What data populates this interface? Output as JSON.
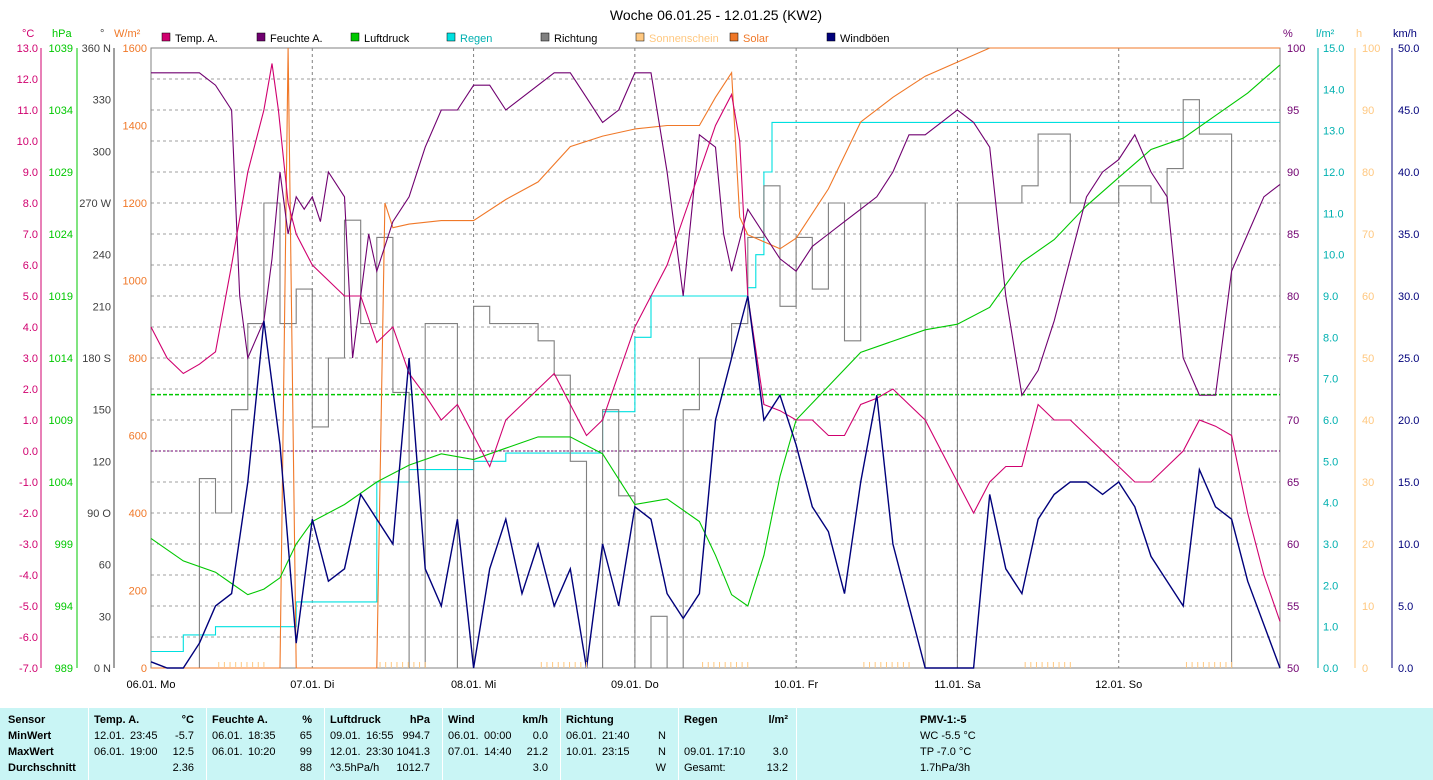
{
  "title": "Woche 06.01.25 - 12.01.25 (KW2)",
  "colors": {
    "temp": "#d0006f",
    "hum": "#700070",
    "press": "#00c800",
    "rain": "#00e0e0",
    "dir": "#808080",
    "sun": "#ffc880",
    "solar": "#f07828",
    "gust": "#00007b",
    "grid": "#808080",
    "bottom_bg": "#c9f5f5"
  },
  "units": {
    "temp": "°C",
    "press": "hPa",
    "dir": "°",
    "solar": "W/m²",
    "hum": "%",
    "rain": "l/m²",
    "sun": "h",
    "wind": "km/h"
  },
  "axes": {
    "temp": [
      "13.0",
      "12.0",
      "11.0",
      "10.0",
      "9.0",
      "8.0",
      "7.0",
      "6.0",
      "5.0",
      "4.0",
      "3.0",
      "2.0",
      "1.0",
      "0.0",
      "-1.0",
      "-2.0",
      "-3.0",
      "-4.0",
      "-5.0",
      "-6.0",
      "-7.0"
    ],
    "press": [
      "1039",
      "1034",
      "1029",
      "1024",
      "1019",
      "1014",
      "1009",
      "1004",
      "999",
      "994",
      "989"
    ],
    "dir": [
      "360 N",
      "330",
      "300",
      "270 W",
      "240",
      "210",
      "180 S",
      "150",
      "120",
      "90 O",
      "60",
      "30",
      "0 N"
    ],
    "solar": [
      "1600",
      "1400",
      "1200",
      "1000",
      "800",
      "600",
      "400",
      "200",
      "0"
    ],
    "hum": [
      "100",
      "95",
      "90",
      "85",
      "80",
      "75",
      "70",
      "65",
      "60",
      "55",
      "50"
    ],
    "rain": [
      "15.0",
      "14.0",
      "13.0",
      "12.0",
      "11.0",
      "10.0",
      "9.0",
      "8.0",
      "7.0",
      "6.0",
      "5.0",
      "4.0",
      "3.0",
      "2.0",
      "1.0",
      "0.0"
    ],
    "sun": [
      "100",
      "90",
      "80",
      "70",
      "60",
      "50",
      "40",
      "30",
      "20",
      "10",
      "0"
    ],
    "wind": [
      "50.0",
      "45.0",
      "40.0",
      "35.0",
      "30.0",
      "25.0",
      "20.0",
      "15.0",
      "10.0",
      "5.0",
      "0.0"
    ],
    "days": [
      "06.01. Mo",
      "07.01. Di",
      "08.01. Mi",
      "09.01. Do",
      "10.01. Fr",
      "11.01. Sa",
      "12.01. So"
    ]
  },
  "legend": [
    "Temp. A.",
    "Feuchte A.",
    "Luftdruck",
    "Regen",
    "Richtung",
    "Sonnenschein",
    "Solar",
    "Windböen"
  ],
  "chart_data": {
    "type": "line",
    "title": "Woche 06.01.25 - 12.01.25 (KW2)",
    "x_unit": "days since 06.01. 00:00",
    "xlim": [
      0,
      7
    ],
    "series": [
      {
        "name": "Temp. A.",
        "unit": "°C",
        "ylim": [
          -7,
          13
        ],
        "x": [
          0,
          0.1,
          0.2,
          0.3,
          0.4,
          0.5,
          0.6,
          0.7,
          0.75,
          0.79,
          0.85,
          0.9,
          0.95,
          1.0,
          1.1,
          1.2,
          1.3,
          1.4,
          1.5,
          1.6,
          1.7,
          1.8,
          1.9,
          2.0,
          2.1,
          2.2,
          2.3,
          2.4,
          2.5,
          2.6,
          2.7,
          2.8,
          2.9,
          3.0,
          3.1,
          3.2,
          3.3,
          3.4,
          3.5,
          3.6,
          3.65,
          3.7,
          3.8,
          3.9,
          4.0,
          4.1,
          4.2,
          4.3,
          4.4,
          4.5,
          4.6,
          4.7,
          4.8,
          4.9,
          5.0,
          5.1,
          5.2,
          5.3,
          5.4,
          5.5,
          5.6,
          5.7,
          5.8,
          5.9,
          6.0,
          6.1,
          6.2,
          6.3,
          6.4,
          6.5,
          6.6,
          6.7,
          6.8,
          6.9,
          7.0
        ],
        "y": [
          4.0,
          3.0,
          2.5,
          2.8,
          3.2,
          6.0,
          9.0,
          11.0,
          12.5,
          11.0,
          8.0,
          7.0,
          6.5,
          6.0,
          5.5,
          5.0,
          5.0,
          3.5,
          4.0,
          2.5,
          1.8,
          1.0,
          1.5,
          0.5,
          -0.5,
          1.0,
          1.5,
          2.0,
          2.5,
          1.5,
          0.5,
          1.0,
          2.5,
          4.0,
          5.0,
          6.0,
          7.5,
          9.0,
          10.5,
          11.5,
          10.0,
          5.0,
          1.5,
          1.3,
          1.0,
          1.0,
          0.5,
          0.5,
          1.5,
          1.7,
          2.0,
          1.5,
          1.0,
          0.0,
          -1.0,
          -2.0,
          -1.0,
          -0.5,
          -0.5,
          1.5,
          1.0,
          1.0,
          0.5,
          0.0,
          -0.5,
          -1.0,
          -1.0,
          -0.5,
          0.0,
          1.0,
          0.8,
          0.5,
          -2.0,
          -4.0,
          -5.5
        ]
      },
      {
        "name": "Feuchte A.",
        "unit": "%",
        "ylim": [
          50,
          100
        ],
        "x": [
          0,
          0.1,
          0.2,
          0.3,
          0.4,
          0.5,
          0.55,
          0.6,
          0.7,
          0.75,
          0.8,
          0.85,
          0.9,
          0.95,
          1.0,
          1.05,
          1.1,
          1.2,
          1.25,
          1.3,
          1.35,
          1.4,
          1.5,
          1.6,
          1.7,
          1.8,
          1.9,
          2.0,
          2.1,
          2.2,
          2.3,
          2.4,
          2.5,
          2.6,
          2.7,
          2.8,
          2.9,
          3.0,
          3.1,
          3.2,
          3.3,
          3.4,
          3.5,
          3.55,
          3.6,
          3.7,
          3.8,
          3.9,
          4.0,
          4.1,
          4.2,
          4.3,
          4.4,
          4.5,
          4.6,
          4.7,
          4.8,
          4.9,
          5.0,
          5.1,
          5.2,
          5.3,
          5.4,
          5.5,
          5.6,
          5.7,
          5.8,
          5.9,
          6.0,
          6.1,
          6.2,
          6.3,
          6.4,
          6.5,
          6.6,
          6.7,
          6.8,
          6.9,
          7.0
        ],
        "y": [
          98,
          98,
          98,
          98,
          97,
          95,
          80,
          75,
          78,
          83,
          90,
          85,
          88,
          87,
          88,
          86,
          90,
          88,
          75,
          80,
          85,
          82,
          86,
          88,
          92,
          95,
          95,
          97,
          97,
          95,
          96,
          97,
          98,
          98,
          96,
          94,
          95,
          98,
          98,
          90,
          80,
          93,
          92,
          85,
          82,
          87,
          85,
          83,
          82,
          84,
          85,
          86,
          87,
          88,
          90,
          93,
          93,
          94,
          95,
          94,
          92,
          80,
          72,
          74,
          78,
          83,
          88,
          90,
          91,
          93,
          90,
          88,
          75,
          72,
          72,
          82,
          85,
          88,
          89
        ]
      },
      {
        "name": "Luftdruck",
        "unit": "hPa",
        "ylim": [
          989,
          1044
        ],
        "x": [
          0,
          0.2,
          0.4,
          0.5,
          0.6,
          0.7,
          0.8,
          0.9,
          1.0,
          1.2,
          1.4,
          1.6,
          1.8,
          2.0,
          2.2,
          2.4,
          2.6,
          2.8,
          3.0,
          3.2,
          3.4,
          3.5,
          3.6,
          3.7,
          3.8,
          3.9,
          4.0,
          4.2,
          4.4,
          4.6,
          4.8,
          5.0,
          5.2,
          5.4,
          5.6,
          5.8,
          6.0,
          6.2,
          6.4,
          6.6,
          6.8,
          7.0
        ],
        "y": [
          1000.5,
          998.5,
          997.5,
          996.5,
          995.5,
          996,
          997,
          1000,
          1002,
          1003.5,
          1005.5,
          1007,
          1008,
          1007.5,
          1008.5,
          1009.5,
          1009.5,
          1008,
          1003.5,
          1004,
          1002,
          999,
          995.5,
          994.5,
          999,
          1006,
          1011,
          1014,
          1017,
          1018,
          1019,
          1019.5,
          1021,
          1025,
          1027,
          1030,
          1032.5,
          1035,
          1036,
          1038,
          1040,
          1042.5
        ]
      },
      {
        "name": "Regen",
        "unit": "l/m²",
        "ylim": [
          0,
          15
        ],
        "x": [
          0,
          0.2,
          0.4,
          0.6,
          0.8,
          0.9,
          1.0,
          1.2,
          1.35,
          1.4,
          1.6,
          1.8,
          2.0,
          2.2,
          2.4,
          2.6,
          2.8,
          3.0,
          3.1,
          3.2,
          3.4,
          3.6,
          3.7,
          3.75,
          3.8,
          3.85,
          3.9,
          4.0,
          4.5,
          5.0,
          5.5,
          6.0,
          6.5,
          7.0
        ],
        "y": [
          0.4,
          0.8,
          1.0,
          1.0,
          1.0,
          1.6,
          1.6,
          1.6,
          1.6,
          4.5,
          4.8,
          4.8,
          5.0,
          5.2,
          5.2,
          5.2,
          6.2,
          8.0,
          9.0,
          9.0,
          9.0,
          9.0,
          9.2,
          10.0,
          12.0,
          13.2,
          13.2,
          13.2,
          13.2,
          13.2,
          13.2,
          13.2,
          13.2,
          13.2
        ]
      },
      {
        "name": "Richtung",
        "unit": "°",
        "ylim": [
          0,
          360
        ],
        "x": [
          0,
          0.3,
          0.4,
          0.5,
          0.6,
          0.7,
          0.8,
          0.9,
          1.0,
          1.1,
          1.2,
          1.3,
          1.4,
          1.5,
          1.6,
          1.7,
          1.8,
          1.9,
          2.0,
          2.1,
          2.2,
          2.3,
          2.4,
          2.5,
          2.6,
          2.7,
          2.8,
          2.9,
          3.0,
          3.1,
          3.2,
          3.3,
          3.4,
          3.5,
          3.6,
          3.7,
          3.8,
          3.9,
          4.0,
          4.1,
          4.2,
          4.3,
          4.4,
          4.5,
          4.6,
          4.7,
          4.8,
          4.9,
          5.0,
          5.1,
          5.2,
          5.3,
          5.4,
          5.5,
          5.6,
          5.7,
          5.8,
          5.9,
          6.0,
          6.1,
          6.2,
          6.3,
          6.4,
          6.5,
          6.6,
          6.7,
          7.0
        ],
        "y": [
          0,
          110,
          90,
          150,
          200,
          270,
          200,
          220,
          140,
          180,
          260,
          200,
          250,
          160,
          0,
          200,
          200,
          0,
          210,
          200,
          200,
          200,
          190,
          170,
          120,
          0,
          150,
          100,
          0,
          30,
          0,
          150,
          180,
          180,
          200,
          250,
          280,
          210,
          250,
          220,
          270,
          190,
          270,
          270,
          270,
          270,
          0,
          0,
          270,
          270,
          270,
          270,
          280,
          310,
          310,
          270,
          270,
          270,
          280,
          280,
          270,
          290,
          330,
          310,
          310,
          0,
          0
        ]
      },
      {
        "name": "Sonnenschein",
        "unit": "h",
        "ylim": [
          0,
          100
        ],
        "x": [
          0,
          7
        ],
        "y": [
          0,
          0
        ]
      },
      {
        "name": "Solar",
        "unit": "W/m²",
        "ylim": [
          0,
          1760
        ],
        "x": [
          0,
          0.8,
          0.85,
          0.9,
          1.4,
          1.45,
          1.5,
          1.6,
          1.8,
          2.0,
          2.2,
          2.4,
          2.6,
          2.8,
          3.0,
          3.2,
          3.4,
          3.5,
          3.6,
          3.65,
          3.7,
          3.8,
          3.9,
          4.0,
          4.2,
          4.4,
          4.6,
          4.8,
          5.0,
          5.2,
          5.4,
          5.6,
          5.8,
          6.0,
          6.5,
          7.0
        ],
        "y": [
          0,
          0,
          1760,
          0,
          0,
          1320,
          1250,
          1260,
          1270,
          1270,
          1330,
          1380,
          1480,
          1510,
          1530,
          1540,
          1540,
          1620,
          1690,
          1280,
          1230,
          1210,
          1190,
          1220,
          1360,
          1550,
          1620,
          1680,
          1720,
          1760,
          1760,
          1760,
          1760,
          1760,
          1760,
          1760
        ]
      },
      {
        "name": "Windböen",
        "unit": "km/h",
        "ylim": [
          0,
          50
        ],
        "x": [
          0,
          0.1,
          0.2,
          0.3,
          0.4,
          0.5,
          0.6,
          0.7,
          0.8,
          0.9,
          1.0,
          1.1,
          1.2,
          1.3,
          1.4,
          1.5,
          1.6,
          1.7,
          1.8,
          1.9,
          2.0,
          2.1,
          2.2,
          2.3,
          2.4,
          2.5,
          2.6,
          2.7,
          2.8,
          2.9,
          3.0,
          3.1,
          3.2,
          3.3,
          3.4,
          3.5,
          3.6,
          3.7,
          3.8,
          3.9,
          4.0,
          4.1,
          4.2,
          4.3,
          4.4,
          4.5,
          4.6,
          4.7,
          4.8,
          4.9,
          5.0,
          5.1,
          5.2,
          5.3,
          5.4,
          5.5,
          5.6,
          5.7,
          5.8,
          5.9,
          6.0,
          6.1,
          6.2,
          6.3,
          6.4,
          6.5,
          6.6,
          6.7,
          6.8,
          7.0
        ],
        "y": [
          0.5,
          0,
          0,
          2,
          5,
          6,
          15,
          28,
          18,
          2,
          12,
          7,
          8,
          14,
          12,
          10,
          25,
          8,
          5,
          12,
          0,
          8,
          12,
          6,
          10,
          5,
          8,
          0,
          10,
          5,
          13,
          12,
          6,
          4,
          6,
          20,
          25,
          30,
          20,
          22,
          18,
          13,
          11,
          6,
          15,
          22,
          10,
          5,
          0,
          0,
          0,
          0,
          14,
          8,
          6,
          12,
          14,
          15,
          15,
          14,
          15,
          13,
          9,
          7,
          5,
          16,
          13,
          12,
          7,
          0
        ]
      }
    ]
  },
  "stats": {
    "col_sensor": {
      "header": "Sensor",
      "rows": [
        "MinWert",
        "MaxWert",
        "Durchschnitt"
      ]
    },
    "col_temp": {
      "header": "Temp. A.",
      "unit": "°C",
      "rows": [
        [
          "12.01.",
          "23:45",
          "-5.7"
        ],
        [
          "06.01.",
          "19:00",
          "12.5"
        ],
        [
          "",
          "",
          "2.36"
        ]
      ]
    },
    "col_hum": {
      "header": "Feuchte A.",
      "unit": "%",
      "rows": [
        [
          "06.01.",
          "18:35",
          "65"
        ],
        [
          "06.01.",
          "10:20",
          "99"
        ],
        [
          "",
          "",
          "88"
        ]
      ]
    },
    "col_press": {
      "header": "Luftdruck",
      "unit": "hPa",
      "rows": [
        [
          "09.01.",
          "16:55",
          "994.7"
        ],
        [
          "12.01.",
          "23:30",
          "1041.3"
        ],
        [
          "^3.5hPa/h",
          "",
          "1012.7"
        ]
      ]
    },
    "col_wind": {
      "header": "Wind",
      "unit": "km/h",
      "rows": [
        [
          "06.01.",
          "00:00",
          "0.0"
        ],
        [
          "07.01.",
          "14:40",
          "21.2"
        ],
        [
          "",
          "",
          "3.0"
        ]
      ]
    },
    "col_dir": {
      "header": "Richtung",
      "rows": [
        [
          "06.01.",
          "21:40",
          "N"
        ],
        [
          "10.01.",
          "23:15",
          "N"
        ],
        [
          "",
          "",
          "W"
        ]
      ]
    },
    "col_rain": {
      "header": "Regen",
      "unit": "l/m²",
      "rows": [
        [
          "",
          ""
        ],
        [
          "09.01.  17:10",
          "3.0"
        ],
        [
          "Gesamt:",
          "13.2"
        ]
      ]
    },
    "col_pmv": {
      "header": "PMV-1:-5",
      "rows": [
        "WC -5.5 °C",
        "TP -7.0 °C",
        "1.7hPa/3h"
      ]
    }
  }
}
